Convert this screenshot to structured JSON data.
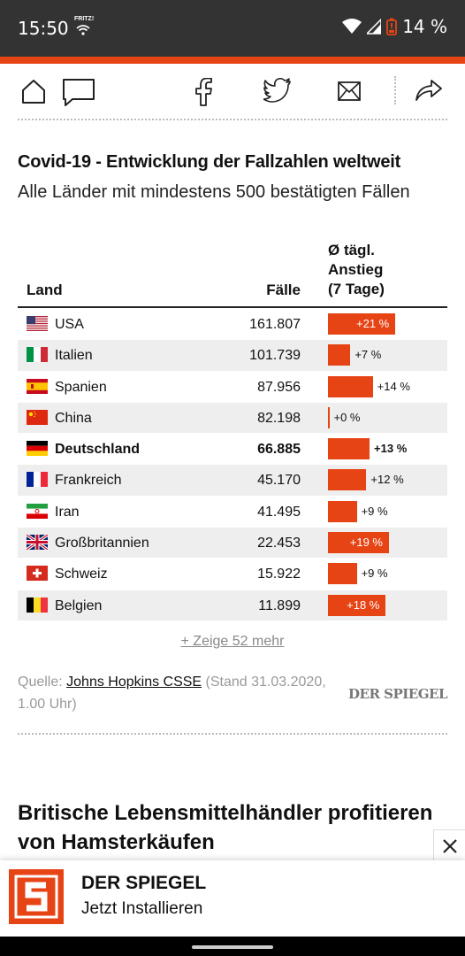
{
  "status": {
    "time": "15:50",
    "network_label": "FRITZ!",
    "battery": "14 %"
  },
  "colors": {
    "accent": "#e64415",
    "statusbar": "#333333"
  },
  "toolbar": {
    "icons": [
      "home-icon",
      "comment-icon",
      "facebook-icon",
      "twitter-icon",
      "mail-icon",
      "share-icon"
    ]
  },
  "chart": {
    "title": "Covid-19 - Entwicklung der Fallzahlen weltweit",
    "subtitle": "Alle Länder mit mindestens 500 bestätigten Fällen",
    "col_country": "Land",
    "col_cases": "Fälle",
    "col_increase": "Ø tägl. Anstieg (7 Tage)"
  },
  "chart_data": {
    "type": "table",
    "title": "Covid-19 - Entwicklung der Fallzahlen weltweit",
    "subtitle": "Alle Länder mit mindestens 500 bestätigten Fällen",
    "columns": [
      "Land",
      "Fälle",
      "Ø tägl. Anstieg (7 Tage)"
    ],
    "rows": [
      {
        "country": "USA",
        "flag": "us",
        "cases": "161.807",
        "increase": 21,
        "increase_label": "+21 %",
        "highlight": false
      },
      {
        "country": "Italien",
        "flag": "it",
        "cases": "101.739",
        "increase": 7,
        "increase_label": "+7 %",
        "highlight": false
      },
      {
        "country": "Spanien",
        "flag": "es",
        "cases": "87.956",
        "increase": 14,
        "increase_label": "+14 %",
        "highlight": false
      },
      {
        "country": "China",
        "flag": "cn",
        "cases": "82.198",
        "increase": 0,
        "increase_label": "+0 %",
        "highlight": false
      },
      {
        "country": "Deutschland",
        "flag": "de",
        "cases": "66.885",
        "increase": 13,
        "increase_label": "+13 %",
        "highlight": true
      },
      {
        "country": "Frankreich",
        "flag": "fr",
        "cases": "45.170",
        "increase": 12,
        "increase_label": "+12 %",
        "highlight": false
      },
      {
        "country": "Iran",
        "flag": "ir",
        "cases": "41.495",
        "increase": 9,
        "increase_label": "+9 %",
        "highlight": false
      },
      {
        "country": "Großbritannien",
        "flag": "gb",
        "cases": "22.453",
        "increase": 19,
        "increase_label": "+19 %",
        "highlight": false
      },
      {
        "country": "Schweiz",
        "flag": "ch",
        "cases": "15.922",
        "increase": 9,
        "increase_label": "+9 %",
        "highlight": false
      },
      {
        "country": "Belgien",
        "flag": "be",
        "cases": "11.899",
        "increase": 18,
        "increase_label": "+18 %",
        "highlight": false
      }
    ]
  },
  "more_link": "+ Zeige 52 mehr",
  "source": {
    "prefix": "Quelle: ",
    "link": "Johns Hopkins CSSE",
    "suffix": " (Stand 31.03.2020, 1.00 Uhr)"
  },
  "publisher_logo": "DER SPIEGEL",
  "next_article": {
    "title": "Britische Lebensmittelhändler profitieren von Hamsterkäufen"
  },
  "install_banner": {
    "app_name": "DER SPIEGEL",
    "cta": "Jetzt Installieren"
  }
}
